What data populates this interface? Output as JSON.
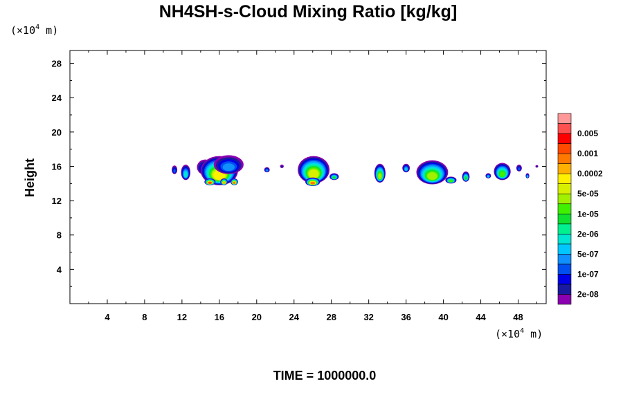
{
  "chart_data": {
    "type": "heatmap",
    "title": "NH4SH-s-Cloud Mixing Ratio [kg/kg]",
    "ylabel": "Height",
    "x_unit": {
      "prefix": "(×10",
      "exp": "4",
      "suffix": " m)"
    },
    "y_unit": {
      "prefix": "(×10",
      "exp": "4",
      "suffix": " m)"
    },
    "time_label": "TIME = 1000000.0",
    "xlim": [
      0,
      51
    ],
    "ylim": [
      0,
      29.5
    ],
    "x_ticks": [
      4,
      8,
      12,
      16,
      20,
      24,
      28,
      32,
      36,
      40,
      44,
      48
    ],
    "y_ticks": [
      4,
      8,
      12,
      16,
      20,
      24,
      28
    ],
    "x_minor_step": 2,
    "y_minor_step": 2,
    "colorbar": {
      "colors": [
        "#8b00b0",
        "#1a1aa0",
        "#0000e8",
        "#0050f0",
        "#1090ff",
        "#00c8ff",
        "#00e6d2",
        "#00f090",
        "#10e030",
        "#40f000",
        "#a0f000",
        "#d8f000",
        "#fff000",
        "#ffb000",
        "#ff7800",
        "#ff4800",
        "#ff0000",
        "#ff5050",
        "#ff9898"
      ],
      "labels": [
        "2e-08",
        "1e-07",
        "5e-07",
        "2e-06",
        "1e-05",
        "5e-05",
        "0.0002",
        "0.001",
        "0.005"
      ],
      "label_levels": [
        1,
        3,
        5,
        7,
        9,
        11,
        13,
        15,
        17
      ]
    },
    "clouds": [
      {
        "x": 11.2,
        "y": 15.6,
        "w": 0.3,
        "h": 0.5,
        "level": 3
      },
      {
        "x": 12.4,
        "y": 15.3,
        "w": 0.5,
        "h": 0.9,
        "level": 6
      },
      {
        "x": 14.5,
        "y": 15.9,
        "w": 0.9,
        "h": 0.9,
        "level": 4
      },
      {
        "x": 16.0,
        "y": 15.5,
        "w": 2.0,
        "h": 1.7,
        "level": 12
      },
      {
        "x": 17.0,
        "y": 16.2,
        "w": 1.6,
        "h": 1.1,
        "level": 4
      },
      {
        "x": 15.0,
        "y": 14.2,
        "w": 0.6,
        "h": 0.4,
        "level": 15
      },
      {
        "x": 16.5,
        "y": 14.2,
        "w": 0.4,
        "h": 0.4,
        "level": 13
      },
      {
        "x": 17.6,
        "y": 14.2,
        "w": 0.4,
        "h": 0.4,
        "level": 14
      },
      {
        "x": 21.1,
        "y": 15.6,
        "w": 0.3,
        "h": 0.3,
        "level": 4
      },
      {
        "x": 22.7,
        "y": 16.0,
        "w": 0.2,
        "h": 0.2,
        "level": 1
      },
      {
        "x": 26.1,
        "y": 15.6,
        "w": 1.7,
        "h": 1.6,
        "level": 11
      },
      {
        "x": 26.0,
        "y": 14.2,
        "w": 0.8,
        "h": 0.5,
        "level": 14
      },
      {
        "x": 28.3,
        "y": 14.8,
        "w": 0.5,
        "h": 0.4,
        "level": 8
      },
      {
        "x": 33.2,
        "y": 15.2,
        "w": 0.6,
        "h": 1.1,
        "level": 10
      },
      {
        "x": 36.0,
        "y": 15.8,
        "w": 0.4,
        "h": 0.5,
        "level": 5
      },
      {
        "x": 38.8,
        "y": 15.3,
        "w": 1.7,
        "h": 1.4,
        "level": 10
      },
      {
        "x": 40.8,
        "y": 14.4,
        "w": 0.6,
        "h": 0.4,
        "level": 9
      },
      {
        "x": 42.4,
        "y": 14.8,
        "w": 0.4,
        "h": 0.6,
        "level": 8
      },
      {
        "x": 44.8,
        "y": 14.9,
        "w": 0.3,
        "h": 0.3,
        "level": 5
      },
      {
        "x": 46.3,
        "y": 15.4,
        "w": 0.9,
        "h": 1.0,
        "level": 9
      },
      {
        "x": 48.1,
        "y": 15.8,
        "w": 0.3,
        "h": 0.4,
        "level": 3
      },
      {
        "x": 49.0,
        "y": 14.9,
        "w": 0.2,
        "h": 0.3,
        "level": 5
      },
      {
        "x": 50.0,
        "y": 16.0,
        "w": 0.15,
        "h": 0.15,
        "level": 1
      }
    ]
  }
}
